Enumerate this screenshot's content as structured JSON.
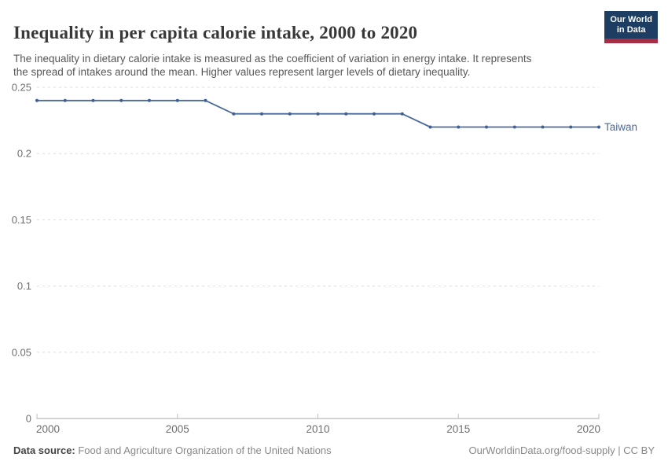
{
  "header": {
    "title": "Inequality in per capita calorie intake, 2000 to 2020",
    "logo": {
      "line1": "Our World",
      "line2": "in Data",
      "bg_color": "#1d3d63",
      "stripe_color": "#a52d46"
    }
  },
  "subtitle": {
    "line1": "The inequality in dietary calorie intake is measured as the coefficient of variation in energy intake. It represents",
    "line2": "the spread of intakes around the mean. Higher values represent larger levels of dietary inequality."
  },
  "chart_data": {
    "type": "line",
    "title": "Inequality in per capita calorie intake, 2000 to 2020",
    "x": [
      2000,
      2001,
      2002,
      2003,
      2004,
      2005,
      2006,
      2007,
      2008,
      2009,
      2010,
      2011,
      2012,
      2013,
      2014,
      2015,
      2016,
      2017,
      2018,
      2019,
      2020
    ],
    "series": [
      {
        "name": "Taiwan",
        "color": "#4C6A9C",
        "marker_color": "#3f5f95",
        "values": [
          0.24,
          0.24,
          0.24,
          0.24,
          0.24,
          0.24,
          0.24,
          0.23,
          0.23,
          0.23,
          0.23,
          0.23,
          0.23,
          0.23,
          0.22,
          0.22,
          0.22,
          0.22,
          0.22,
          0.22,
          0.22
        ]
      }
    ],
    "xlabel": "",
    "ylabel": "",
    "ylim": [
      0,
      0.25
    ],
    "xlim": [
      2000,
      2020
    ],
    "yticks": [
      0,
      0.05,
      0.1,
      0.15,
      0.2,
      0.25
    ],
    "ytick_labels": [
      "0",
      "0.05",
      "0.1",
      "0.15",
      "0.2",
      "0.25"
    ],
    "xticks": [
      2000,
      2005,
      2010,
      2015,
      2020
    ],
    "xtick_labels": [
      "2000",
      "2005",
      "2010",
      "2015",
      "2020"
    ],
    "grid": "horizontal-dashed",
    "legend_position": "end-of-line",
    "grid_color": "#dcdcdc",
    "axis_color": "#a8a8a8",
    "tick_label_color": "#6e6e6e"
  },
  "footer": {
    "source_label": "Data source:",
    "source_value": " Food and Agriculture Organization of the United Nations",
    "link": "OurWorldinData.org/food-supply | CC BY"
  }
}
